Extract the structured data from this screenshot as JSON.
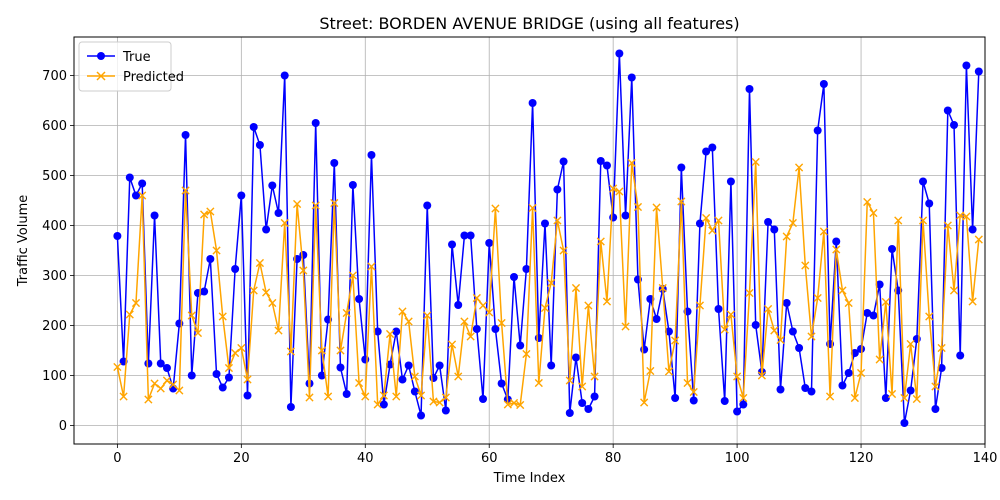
{
  "chart_data": {
    "type": "line",
    "title": "Street: BORDEN AVENUE BRIDGE (using all features)",
    "xlabel": "Time Index",
    "ylabel": "Traffic Volume",
    "xlim": [
      -7,
      140
    ],
    "ylim": [
      -37,
      777
    ],
    "xticks": [
      0,
      20,
      40,
      60,
      80,
      100,
      120,
      140
    ],
    "yticks": [
      0,
      100,
      200,
      300,
      400,
      500,
      600,
      700
    ],
    "grid": true,
    "legend_position": "top-left",
    "x": [
      0,
      1,
      2,
      3,
      4,
      5,
      6,
      7,
      8,
      9,
      10,
      11,
      12,
      13,
      14,
      15,
      16,
      17,
      18,
      19,
      20,
      21,
      22,
      23,
      24,
      25,
      26,
      27,
      28,
      29,
      30,
      31,
      32,
      33,
      34,
      35,
      36,
      37,
      38,
      39,
      40,
      41,
      42,
      43,
      44,
      45,
      46,
      47,
      48,
      49,
      50,
      51,
      52,
      53,
      54,
      55,
      56,
      57,
      58,
      59,
      60,
      61,
      62,
      63,
      64,
      65,
      66,
      67,
      68,
      69,
      70,
      71,
      72,
      73,
      74,
      75,
      76,
      77,
      78,
      79,
      80,
      81,
      82,
      83,
      84,
      85,
      86,
      87,
      88,
      89,
      90,
      91,
      92,
      93,
      94,
      95,
      96,
      97,
      98,
      99,
      100,
      101,
      102,
      103,
      104,
      105,
      106,
      107,
      108,
      109,
      110,
      111,
      112,
      113,
      114,
      115,
      116,
      117,
      118,
      119,
      120,
      121,
      122,
      123,
      124,
      125,
      126,
      127,
      128,
      129,
      130,
      131,
      132,
      133,
      134,
      135,
      136,
      137,
      138,
      139
    ],
    "series": [
      {
        "name": "True",
        "color": "#0000ff",
        "marker": "circle",
        "values": [
          379,
          128,
          496,
          460,
          484,
          124,
          420,
          124,
          115,
          74,
          204,
          581,
          100,
          265,
          268,
          333,
          103,
          76,
          96,
          313,
          460,
          60,
          597,
          561,
          392,
          480,
          425,
          700,
          37,
          333,
          341,
          84,
          605,
          100,
          212,
          525,
          116,
          63,
          481,
          253,
          132,
          541,
          188,
          42,
          122,
          188,
          92,
          120,
          68,
          20,
          440,
          95,
          120,
          30,
          362,
          241,
          380,
          380,
          193,
          53,
          365,
          193,
          84,
          52,
          297,
          160,
          313,
          645,
          175,
          404,
          120,
          472,
          528,
          25,
          136,
          45,
          33,
          58,
          529,
          520,
          416,
          744,
          420,
          696,
          292,
          152,
          253,
          213,
          273,
          188,
          55,
          516,
          228,
          50,
          404,
          548,
          556,
          233,
          49,
          488,
          28,
          42,
          673,
          201,
          107,
          407,
          392,
          72,
          245,
          188,
          155,
          75,
          68,
          590,
          683,
          163,
          368,
          80,
          105,
          145,
          153,
          225,
          220,
          282,
          55,
          353,
          270,
          5,
          70,
          173,
          488,
          444,
          33,
          115,
          630,
          601,
          140,
          720,
          392,
          708
        ]
      },
      {
        "name": "Predicted",
        "color": "#ffa500",
        "marker": "x",
        "values": [
          117,
          58,
          222,
          245,
          460,
          52,
          84,
          74,
          90,
          82,
          70,
          470,
          220,
          185,
          422,
          428,
          350,
          218,
          115,
          145,
          155,
          92,
          270,
          325,
          266,
          245,
          190,
          405,
          148,
          443,
          310,
          56,
          440,
          150,
          58,
          445,
          150,
          225,
          300,
          85,
          58,
          318,
          42,
          60,
          183,
          58,
          228,
          208,
          98,
          60,
          220,
          48,
          46,
          56,
          162,
          98,
          208,
          178,
          255,
          240,
          226,
          434,
          205,
          42,
          45,
          41,
          143,
          435,
          85,
          235,
          285,
          410,
          350,
          90,
          275,
          78,
          240,
          98,
          368,
          248,
          474,
          468,
          198,
          525,
          437,
          46,
          109,
          436,
          275,
          108,
          170,
          448,
          85,
          67,
          240,
          415,
          390,
          410,
          192,
          222,
          98,
          55,
          265,
          527,
          100,
          233,
          190,
          171,
          378,
          405,
          516,
          320,
          178,
          255,
          388,
          58,
          352,
          270,
          245,
          55,
          105,
          447,
          425,
          132,
          247,
          63,
          410,
          55,
          163,
          53,
          410,
          218,
          78,
          155,
          400,
          270,
          420,
          418,
          248,
          372
        ]
      }
    ]
  }
}
